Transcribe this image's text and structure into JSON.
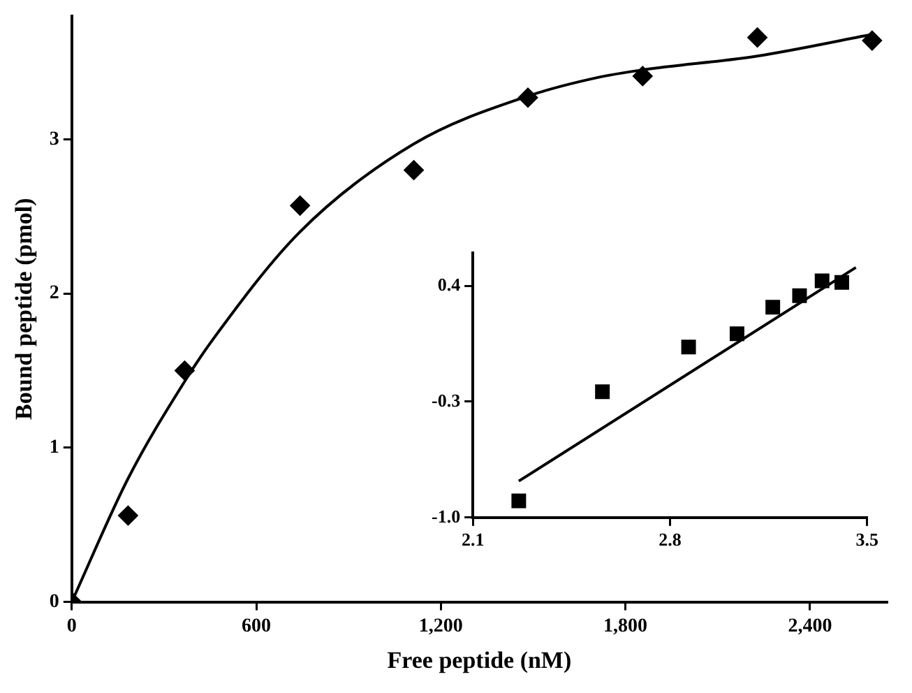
{
  "chart_data": [
    {
      "type": "scatter",
      "xlabel": "Free peptide (nM)",
      "ylabel": "Bound peptide (pmol)",
      "xlim": [
        0,
        2650
      ],
      "ylim": [
        0,
        3.8
      ],
      "xticks": [
        0,
        600,
        {
          "value": 1200,
          "label": "1,200"
        },
        {
          "value": 1800,
          "label": "1,800"
        },
        {
          "value": 2400,
          "label": "2,400"
        }
      ],
      "yticks": [
        0,
        1,
        2,
        3
      ],
      "grid": false,
      "legend": false,
      "series": [
        {
          "type": "scatter",
          "color": "#000000",
          "marker": "diamond",
          "x": [
            0,
            183,
            367,
            742,
            1112,
            1483,
            1856,
            2229,
            2602
          ],
          "values": [
            0,
            0.56,
            1.5,
            2.57,
            2.8,
            3.27,
            3.41,
            3.66,
            3.64
          ]
        },
        {
          "type": "line",
          "color": "#000000",
          "marker": "none",
          "line_style": "solid",
          "x": [
            0,
            183,
            367,
            458,
            742,
            1112,
            1483,
            1708,
            1856,
            2229,
            2602
          ],
          "values": [
            0,
            0.8,
            1.43,
            1.7,
            2.4,
            2.97,
            3.28,
            3.4,
            3.45,
            3.54,
            3.68
          ]
        }
      ]
    },
    {
      "type": "scatter",
      "xlim": [
        2.1,
        3.5
      ],
      "ylim": [
        -1.0,
        0.6
      ],
      "xticks": [
        {
          "value": 2.1,
          "label": "2.1"
        },
        {
          "value": 2.8,
          "label": "2.8"
        },
        {
          "value": 3.5,
          "label": "3.5"
        }
      ],
      "yticks": [
        {
          "value": -1.0,
          "label": "-1.0"
        },
        {
          "value": -0.3,
          "label": "-0.3"
        },
        {
          "value": 0.4,
          "label": "0.4"
        }
      ],
      "grid": false,
      "legend": false,
      "series": [
        {
          "type": "scatter",
          "color": "#000000",
          "marker": "square",
          "x": [
            2.263,
            2.56,
            2.866,
            3.038,
            3.165,
            3.26,
            3.34,
            3.41
          ],
          "values": [
            -0.9,
            -0.24,
            0.03,
            0.11,
            0.27,
            0.34,
            0.43,
            0.42
          ]
        },
        {
          "type": "line",
          "color": "#000000",
          "marker": "none",
          "line_style": "solid",
          "x": [
            2.263,
            3.46
          ],
          "values": [
            -0.78,
            0.51
          ]
        }
      ]
    }
  ]
}
